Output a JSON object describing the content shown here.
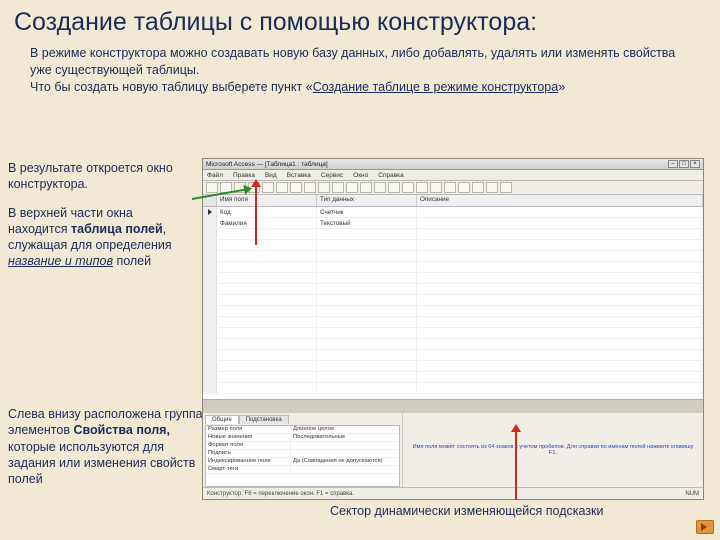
{
  "title": "Создание таблицы с помощью конструктора:",
  "intro": {
    "p1": "В режиме конструктора можно создавать новую базу данных, либо добавлять, удалять или изменять свойства уже существующей таблицы.",
    "p2a": "Что бы создать новую таблицу выберете пункт «",
    "p2link": "Создание таблице в режиме конструктора",
    "p2b": "»"
  },
  "left1": {
    "a": "В результате откроется окно конструктора.",
    "b1": "В верхней части окна находится ",
    "b2": "таблица полей",
    "b3": ", служащая для определения ",
    "b4": "название и типов",
    "b5": " полей"
  },
  "left2": {
    "t1": "Слева внизу расположена группа элементов ",
    "t2": "Свойства поля,",
    "t3": " которые используются для задания или изменения свойств полей"
  },
  "caption": "Сектор динамически изменяющейся подсказки",
  "shot": {
    "wintitle": "Microsoft Access — [Таблица1 : таблица]",
    "menu": [
      "Файл",
      "Правка",
      "Вид",
      "Вставка",
      "Сервис",
      "Окно",
      "Справка"
    ],
    "cols": {
      "a": "Имя поля",
      "b": "Тип данных",
      "c": "Описание"
    },
    "rows": [
      {
        "sel": "tri",
        "a": "Код",
        "b": "Счетчик"
      },
      {
        "a": "Фамилия",
        "b": "Текстовый"
      },
      {
        "a": "",
        "b": ""
      },
      {
        "a": "",
        "b": ""
      },
      {
        "a": "",
        "b": ""
      },
      {
        "a": "",
        "b": ""
      },
      {
        "a": "",
        "b": ""
      },
      {
        "a": "",
        "b": ""
      },
      {
        "a": "",
        "b": ""
      },
      {
        "a": "",
        "b": ""
      },
      {
        "a": "",
        "b": ""
      },
      {
        "a": "",
        "b": ""
      },
      {
        "a": "",
        "b": ""
      },
      {
        "a": "",
        "b": ""
      },
      {
        "a": "",
        "b": ""
      },
      {
        "a": "",
        "b": ""
      },
      {
        "a": "",
        "b": ""
      }
    ],
    "tabs": [
      "Общие",
      "Подстановка"
    ],
    "props": {
      "Размер поля": "Длинное целое",
      "Новые значения": "Последовательные",
      "Формат поля": "",
      "Подпись": "",
      "Индексированное поле": "Да (Совпадения не допускаются)",
      "Смарт-теги": ""
    },
    "hint": "Имя поля может состоять из 64 знаков с учетом пробелов. Для справки по именам полей нажмите клавишу F1.",
    "status_left": "Конструктор. F6 = переключение окон. F1 = справка.",
    "status_right": "NUM"
  }
}
